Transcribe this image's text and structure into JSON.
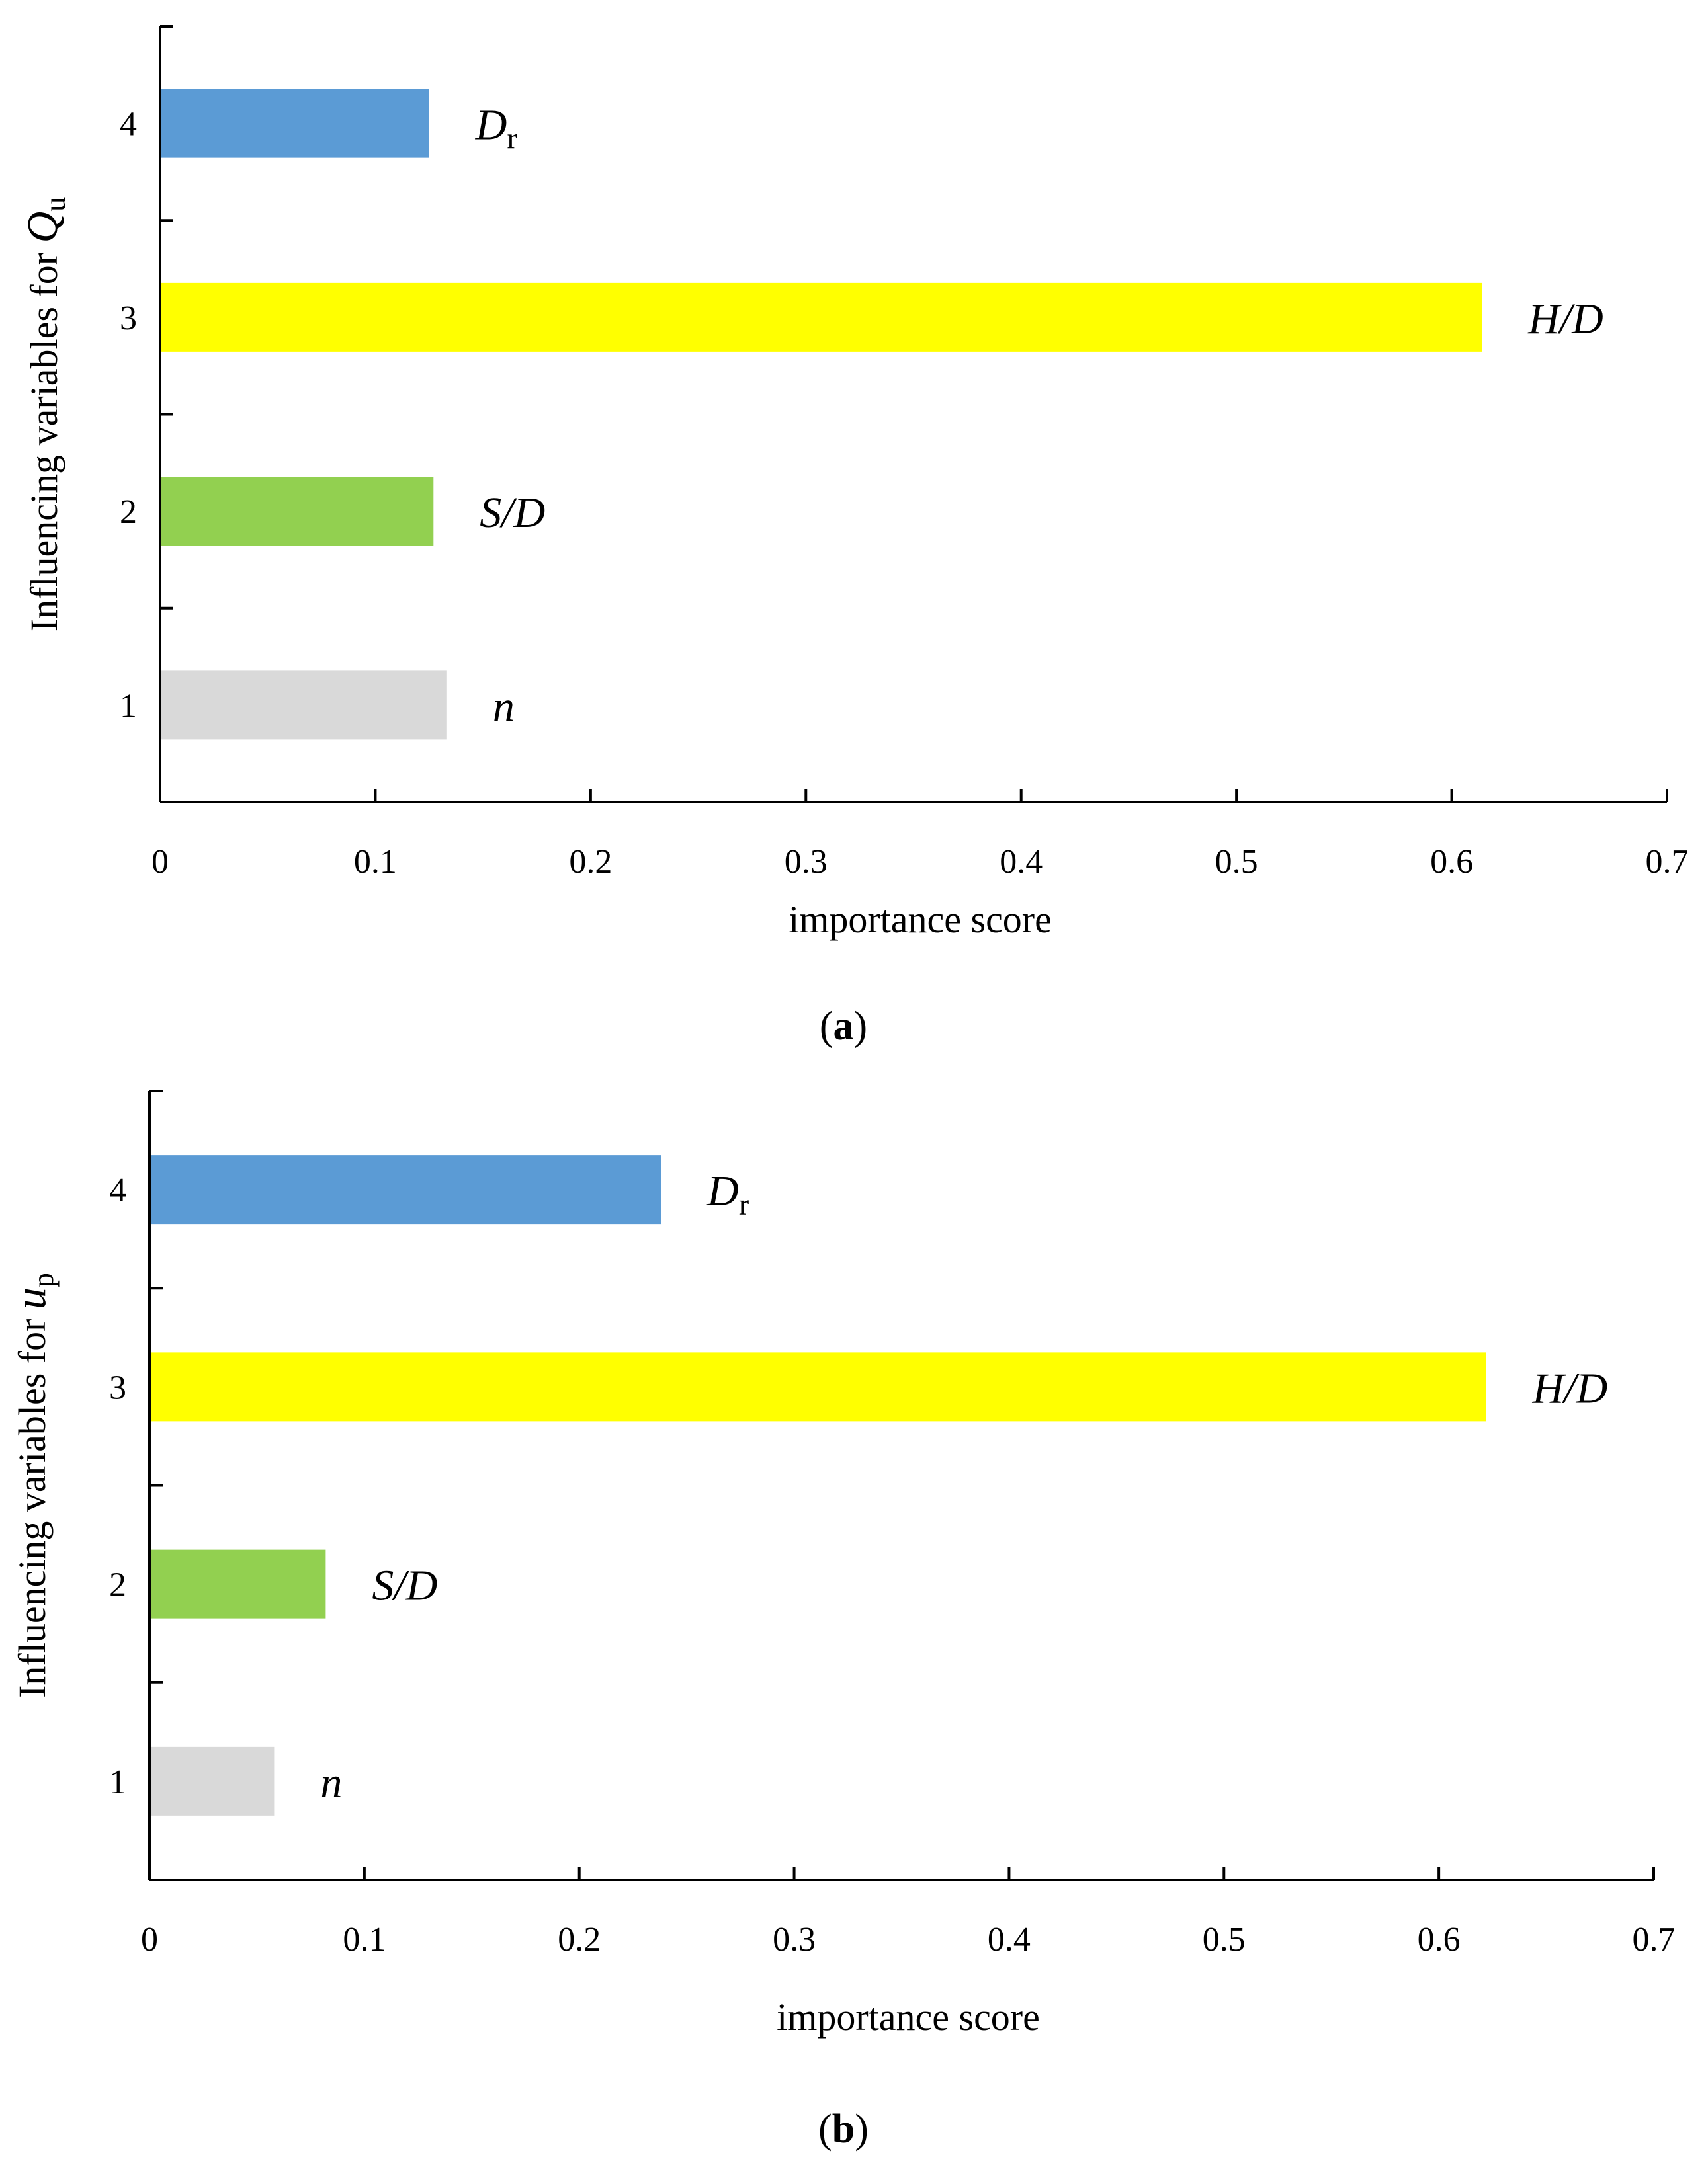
{
  "chart_data": [
    {
      "type": "bar",
      "orientation": "horizontal",
      "panel": "a",
      "categories": [
        "1",
        "2",
        "3",
        "4"
      ],
      "values": [
        0.133,
        0.127,
        0.614,
        0.125
      ],
      "bar_labels": [
        {
          "main": "n",
          "sub": ""
        },
        {
          "main": "S/D",
          "sub": ""
        },
        {
          "main": "H/D",
          "sub": ""
        },
        {
          "main": "D",
          "sub": "r"
        }
      ],
      "colors": [
        "#d9d9d9",
        "#92d050",
        "#ffff00",
        "#5b9bd5"
      ],
      "xlabel": "importance score",
      "ylabel": {
        "text": "Influencing variables for ",
        "var": "Q",
        "sub": "u"
      },
      "xlim": [
        0,
        0.7
      ],
      "xticks": [
        "0",
        "0.1",
        "0.2",
        "0.3",
        "0.4",
        "0.5",
        "0.6",
        "0.7"
      ],
      "caption": "a",
      "grid": false
    },
    {
      "type": "bar",
      "orientation": "horizontal",
      "panel": "b",
      "categories": [
        "1",
        "2",
        "3",
        "4"
      ],
      "values": [
        0.058,
        0.082,
        0.622,
        0.238
      ],
      "bar_labels": [
        {
          "main": "n",
          "sub": ""
        },
        {
          "main": "S/D",
          "sub": ""
        },
        {
          "main": "H/D",
          "sub": ""
        },
        {
          "main": "D",
          "sub": "r"
        }
      ],
      "colors": [
        "#d9d9d9",
        "#92d050",
        "#ffff00",
        "#5b9bd5"
      ],
      "xlabel": "importance score",
      "ylabel": {
        "text": "Influencing variables for ",
        "var": "u",
        "sub": "p"
      },
      "xlim": [
        0,
        0.7
      ],
      "xticks": [
        "0",
        "0.1",
        "0.2",
        "0.3",
        "0.4",
        "0.5",
        "0.6",
        "0.7"
      ],
      "caption": "b",
      "grid": false
    }
  ]
}
